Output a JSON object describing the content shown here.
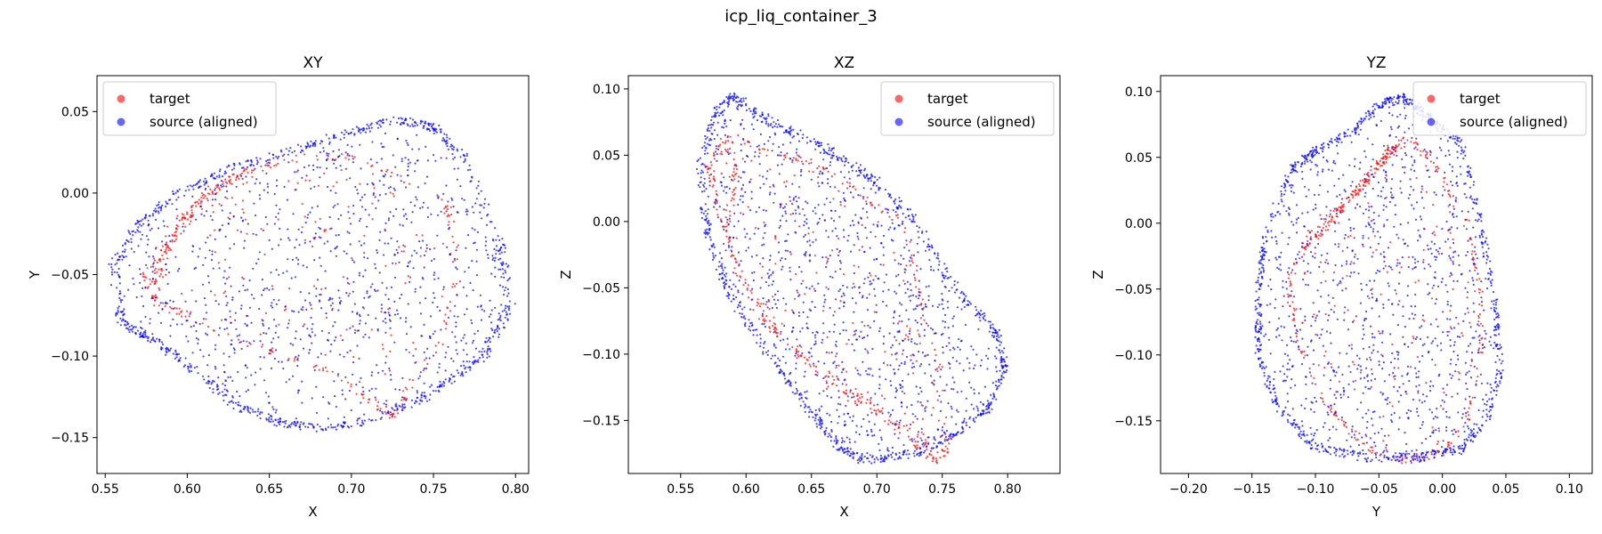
{
  "figure": {
    "title": "icp_liq_container_3"
  },
  "chart_data": [
    {
      "type": "scatter",
      "title": "XY",
      "xlabel": "X",
      "ylabel": "Y",
      "xlim": [
        0.545,
        0.808
      ],
      "ylim": [
        -0.172,
        0.072
      ],
      "xticks": [
        0.55,
        0.6,
        0.65,
        0.7,
        0.75,
        0.8
      ],
      "xtick_labels": [
        "0.55",
        "0.60",
        "0.65",
        "0.70",
        "0.75",
        "0.80"
      ],
      "yticks": [
        -0.15,
        -0.1,
        -0.05,
        0.0,
        0.05
      ],
      "ytick_labels": [
        "−0.15",
        "−0.10",
        "−0.05",
        "0.00",
        "0.05"
      ],
      "legend": "upper-left",
      "grid": false,
      "series": [
        {
          "name": "target",
          "color": "#ff0000",
          "outline": [
            [
              0.575,
              -0.05
            ],
            [
              0.59,
              -0.022
            ],
            [
              0.61,
              0.0
            ],
            [
              0.64,
              0.015
            ],
            [
              0.67,
              0.022
            ],
            [
              0.7,
              0.022
            ],
            [
              0.73,
              0.01
            ],
            [
              0.76,
              -0.01
            ],
            [
              0.765,
              -0.05
            ],
            [
              0.755,
              -0.09
            ],
            [
              0.735,
              -0.12
            ],
            [
              0.725,
              -0.138
            ],
            [
              0.715,
              -0.13
            ],
            [
              0.69,
              -0.11
            ],
            [
              0.66,
              -0.1
            ],
            [
              0.63,
              -0.09
            ],
            [
              0.6,
              -0.075
            ],
            [
              0.58,
              -0.068
            ]
          ],
          "arc": [
            [
              0.58,
              -0.065
            ],
            [
              0.583,
              -0.045
            ],
            [
              0.592,
              -0.025
            ],
            [
              0.605,
              -0.01
            ],
            [
              0.62,
              0.005
            ],
            [
              0.64,
              0.015
            ]
          ],
          "n": 520
        },
        {
          "name": "source (aligned)",
          "color": "#0000ff",
          "outline": [
            [
              0.555,
              -0.045
            ],
            [
              0.57,
              -0.02
            ],
            [
              0.595,
              0.0
            ],
            [
              0.625,
              0.015
            ],
            [
              0.66,
              0.025
            ],
            [
              0.7,
              0.038
            ],
            [
              0.73,
              0.045
            ],
            [
              0.75,
              0.04
            ],
            [
              0.77,
              0.02
            ],
            [
              0.79,
              -0.03
            ],
            [
              0.797,
              -0.07
            ],
            [
              0.78,
              -0.1
            ],
            [
              0.745,
              -0.125
            ],
            [
              0.71,
              -0.14
            ],
            [
              0.68,
              -0.145
            ],
            [
              0.655,
              -0.14
            ],
            [
              0.63,
              -0.13
            ],
            [
              0.605,
              -0.11
            ],
            [
              0.58,
              -0.09
            ],
            [
              0.56,
              -0.08
            ]
          ],
          "n": 1900
        }
      ]
    },
    {
      "type": "scatter",
      "title": "XZ",
      "xlabel": "X",
      "ylabel": "Z",
      "xlim": [
        0.51,
        0.84
      ],
      "ylim": [
        -0.19,
        0.11
      ],
      "xticks": [
        0.55,
        0.6,
        0.65,
        0.7,
        0.75,
        0.8
      ],
      "xtick_labels": [
        "0.55",
        "0.60",
        "0.65",
        "0.70",
        "0.75",
        "0.80"
      ],
      "yticks": [
        -0.15,
        -0.1,
        -0.05,
        0.0,
        0.05,
        0.1
      ],
      "ytick_labels": [
        "−0.15",
        "−0.10",
        "−0.05",
        "0.00",
        "0.05",
        "0.10"
      ],
      "legend": "upper-right",
      "grid": false,
      "series": [
        {
          "name": "target",
          "color": "#ff0000",
          "outline": [
            [
              0.57,
              0.04
            ],
            [
              0.585,
              0.065
            ],
            [
              0.6,
              0.06
            ],
            [
              0.625,
              0.05
            ],
            [
              0.65,
              0.045
            ],
            [
              0.675,
              0.03
            ],
            [
              0.7,
              0.01
            ],
            [
              0.72,
              0.0
            ],
            [
              0.73,
              -0.04
            ],
            [
              0.75,
              -0.12
            ],
            [
              0.755,
              -0.17
            ],
            [
              0.745,
              -0.18
            ],
            [
              0.73,
              -0.17
            ],
            [
              0.7,
              -0.14
            ],
            [
              0.67,
              -0.12
            ],
            [
              0.64,
              -0.1
            ],
            [
              0.61,
              -0.07
            ],
            [
              0.59,
              -0.03
            ],
            [
              0.58,
              0.0
            ],
            [
              0.575,
              0.03
            ]
          ],
          "arc": [
            [
              0.575,
              0.04
            ],
            [
              0.588,
              0.06
            ],
            [
              0.592,
              0.03
            ],
            [
              0.585,
              0.0
            ],
            [
              0.595,
              -0.04
            ],
            [
              0.62,
              -0.08
            ],
            [
              0.66,
              -0.12
            ],
            [
              0.7,
              -0.145
            ],
            [
              0.73,
              -0.16
            ],
            [
              0.75,
              -0.178
            ]
          ],
          "n": 560
        },
        {
          "name": "source (aligned)",
          "color": "#0000ff",
          "outline": [
            [
              0.565,
              0.04
            ],
            [
              0.575,
              0.08
            ],
            [
              0.59,
              0.095
            ],
            [
              0.61,
              0.08
            ],
            [
              0.63,
              0.07
            ],
            [
              0.66,
              0.055
            ],
            [
              0.7,
              0.03
            ],
            [
              0.73,
              0.0
            ],
            [
              0.76,
              -0.05
            ],
            [
              0.79,
              -0.08
            ],
            [
              0.798,
              -0.11
            ],
            [
              0.785,
              -0.14
            ],
            [
              0.76,
              -0.16
            ],
            [
              0.73,
              -0.175
            ],
            [
              0.69,
              -0.18
            ],
            [
              0.67,
              -0.17
            ],
            [
              0.64,
              -0.13
            ],
            [
              0.61,
              -0.09
            ],
            [
              0.585,
              -0.05
            ],
            [
              0.57,
              -0.01
            ]
          ],
          "n": 1900
        }
      ]
    },
    {
      "type": "scatter",
      "title": "YZ",
      "xlabel": "Y",
      "ylabel": "Z",
      "xlim": [
        -0.222,
        0.118
      ],
      "ylim": [
        -0.19,
        0.112
      ],
      "xticks": [
        -0.2,
        -0.15,
        -0.1,
        -0.05,
        0.0,
        0.05,
        0.1
      ],
      "xtick_labels": [
        "−0.20",
        "−0.15",
        "−0.10",
        "−0.05",
        "0.00",
        "0.05",
        "0.10"
      ],
      "yticks": [
        -0.15,
        -0.1,
        -0.05,
        0.0,
        0.05,
        0.1
      ],
      "ytick_labels": [
        "−0.15",
        "−0.10",
        "−0.05",
        "0.00",
        "0.05",
        "0.10"
      ],
      "legend": "upper-right",
      "grid": false,
      "series": [
        {
          "name": "target",
          "color": "#ff0000",
          "outline": [
            [
              -0.12,
              -0.04
            ],
            [
              -0.1,
              0.0
            ],
            [
              -0.07,
              0.02
            ],
            [
              -0.05,
              0.05
            ],
            [
              -0.03,
              0.065
            ],
            [
              -0.01,
              0.05
            ],
            [
              0.02,
              0.0
            ],
            [
              0.03,
              -0.05
            ],
            [
              0.03,
              -0.1
            ],
            [
              0.02,
              -0.15
            ],
            [
              0.0,
              -0.175
            ],
            [
              -0.03,
              -0.18
            ],
            [
              -0.06,
              -0.17
            ],
            [
              -0.09,
              -0.14
            ],
            [
              -0.11,
              -0.1
            ],
            [
              -0.12,
              -0.06
            ]
          ],
          "arc": [
            [
              -0.11,
              -0.02
            ],
            [
              -0.09,
              0.0
            ],
            [
              -0.07,
              0.02
            ],
            [
              -0.05,
              0.045
            ],
            [
              -0.03,
              0.062
            ]
          ],
          "n": 560
        },
        {
          "name": "source (aligned)",
          "color": "#0000ff",
          "outline": [
            [
              -0.145,
              -0.05
            ],
            [
              -0.14,
              -0.01
            ],
            [
              -0.12,
              0.04
            ],
            [
              -0.1,
              0.055
            ],
            [
              -0.07,
              0.07
            ],
            [
              -0.05,
              0.09
            ],
            [
              -0.03,
              0.095
            ],
            [
              -0.01,
              0.08
            ],
            [
              0.015,
              0.06
            ],
            [
              0.03,
              0.0
            ],
            [
              0.04,
              -0.05
            ],
            [
              0.046,
              -0.11
            ],
            [
              0.035,
              -0.15
            ],
            [
              0.015,
              -0.172
            ],
            [
              -0.02,
              -0.178
            ],
            [
              -0.06,
              -0.178
            ],
            [
              -0.1,
              -0.17
            ],
            [
              -0.13,
              -0.14
            ],
            [
              -0.145,
              -0.1
            ]
          ],
          "n": 1900
        }
      ]
    }
  ]
}
